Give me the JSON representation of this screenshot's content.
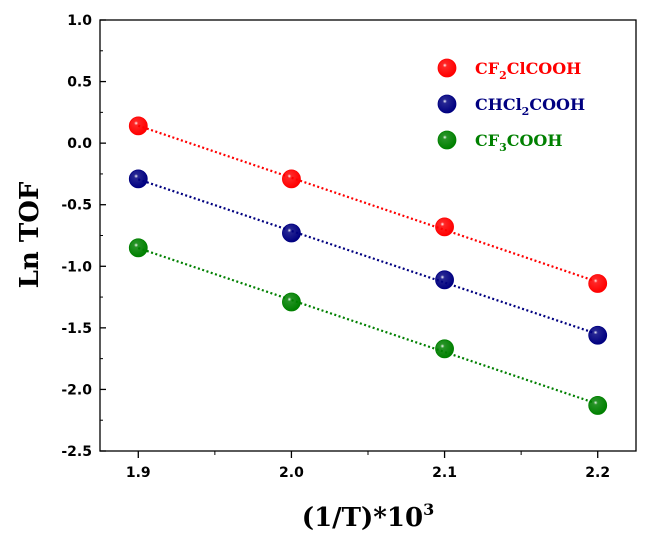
{
  "chart_data": {
    "type": "scatter",
    "xlabel": "(1/T)*10",
    "xlabel_sup": "3",
    "ylabel": "Ln TOF",
    "xlim": [
      1.875,
      2.225
    ],
    "ylim": [
      -2.5,
      1.0
    ],
    "xticks": [
      1.9,
      2.0,
      2.1,
      2.2
    ],
    "xtick_labels": [
      "1.9",
      "2.0",
      "2.1",
      "2.2"
    ],
    "yticks": [
      1.0,
      0.5,
      0.0,
      -0.5,
      -1.0,
      -1.5,
      -2.0,
      -2.5
    ],
    "ytick_labels": [
      "1.0",
      "0.5",
      "0.0",
      "-0.5",
      "-1.0",
      "-1.5",
      "-2.0",
      "-2.5"
    ],
    "grid": false,
    "legend_position": "top-right",
    "series": [
      {
        "name": "CF2ClCOOH",
        "legend_parts": [
          "CF",
          "2",
          "ClCOOH"
        ],
        "color": "#ff0000",
        "x": [
          1.9,
          2.0,
          2.1,
          2.2
        ],
        "y": [
          0.14,
          -0.29,
          -0.68,
          -1.14
        ],
        "fit_line": true
      },
      {
        "name": "CHCl2COOH",
        "legend_parts": [
          "CHCl",
          "2",
          "COOH"
        ],
        "color": "#000080",
        "x": [
          1.9,
          2.0,
          2.1,
          2.2
        ],
        "y": [
          -0.29,
          -0.73,
          -1.11,
          -1.56
        ],
        "fit_line": true
      },
      {
        "name": "CF3COOH",
        "legend_parts": [
          "CF",
          "3",
          "COOH"
        ],
        "color": "#008000",
        "x": [
          1.9,
          2.0,
          2.1,
          2.2
        ],
        "y": [
          -0.85,
          -1.29,
          -1.67,
          -2.13
        ],
        "fit_line": true
      }
    ]
  }
}
